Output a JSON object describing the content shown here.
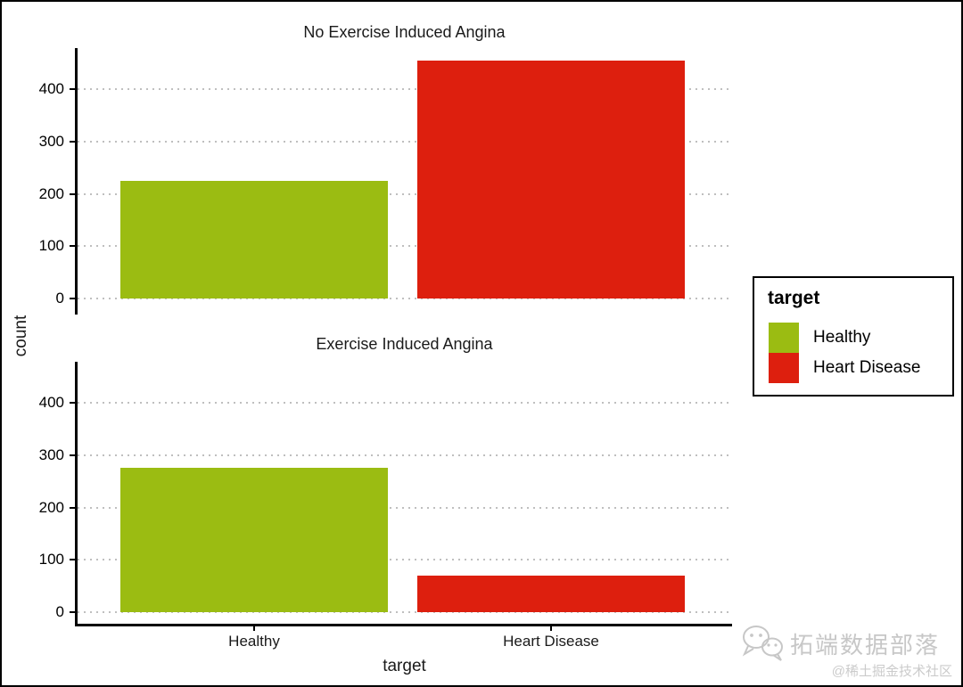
{
  "chart_data": {
    "type": "bar",
    "categories": [
      "Healthy",
      "Heart Disease"
    ],
    "facets": [
      {
        "title": "No Exercise Induced Angina",
        "values": [
          225,
          455
        ]
      },
      {
        "title": "Exercise Induced Angina",
        "values": [
          275,
          70
        ]
      }
    ],
    "xlabel": "target",
    "ylabel": "count",
    "y_ticks": [
      0,
      100,
      200,
      300,
      400
    ],
    "ylim": [
      0,
      475
    ],
    "grid": {
      "horizontal": "dotted",
      "color": "#bfbfbf"
    },
    "legend": {
      "title": "target",
      "position": "right",
      "entries": [
        {
          "label": "Healthy",
          "color": "#9bbc12"
        },
        {
          "label": "Heart Disease",
          "color": "#dd1f0e"
        }
      ]
    }
  },
  "watermark": {
    "icon": "wechat-chat-bubbles-icon",
    "title": "拓端数据部落",
    "subtitle": "@稀土掘金技术社区"
  }
}
